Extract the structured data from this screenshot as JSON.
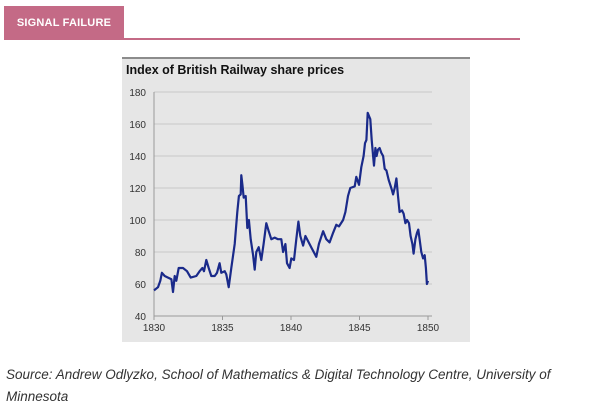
{
  "header": {
    "tab_label": "SIGNAL FAILURE",
    "accent_color": "#c46a86"
  },
  "chart_data": {
    "type": "line",
    "title": "Index of British Railway share prices",
    "xlabel": "",
    "ylabel": "",
    "xlim": [
      1830,
      1850
    ],
    "ylim": [
      40,
      180
    ],
    "xticks": [
      "1830",
      "1835",
      "1840",
      "1845",
      "1850"
    ],
    "yticks": [
      "40",
      "60",
      "80",
      "100",
      "120",
      "140",
      "160",
      "180"
    ],
    "grid": "horizontal",
    "line_color": "#1a2a8a",
    "x": [
      1830.0,
      1830.29,
      1830.46,
      1830.58,
      1830.78,
      1831.02,
      1831.27,
      1831.39,
      1831.51,
      1831.63,
      1831.8,
      1832.12,
      1832.41,
      1832.68,
      1833.09,
      1833.33,
      1833.53,
      1833.65,
      1833.82,
      1833.99,
      1834.18,
      1834.43,
      1834.6,
      1834.79,
      1834.91,
      1835.16,
      1835.28,
      1835.45,
      1835.64,
      1835.89,
      1836.08,
      1836.2,
      1836.33,
      1836.37,
      1836.45,
      1836.55,
      1836.69,
      1836.81,
      1836.93,
      1837.06,
      1837.23,
      1837.35,
      1837.47,
      1837.64,
      1837.83,
      1838.0,
      1838.2,
      1838.37,
      1838.56,
      1838.81,
      1839.05,
      1839.29,
      1839.42,
      1839.59,
      1839.71,
      1839.9,
      1840.02,
      1840.22,
      1840.39,
      1840.54,
      1840.68,
      1840.88,
      1841.05,
      1841.29,
      1841.53,
      1841.85,
      1842.04,
      1842.34,
      1842.58,
      1842.82,
      1843.07,
      1843.31,
      1843.5,
      1843.8,
      1843.97,
      1844.16,
      1844.33,
      1844.65,
      1844.77,
      1844.96,
      1845.13,
      1845.3,
      1845.4,
      1845.5,
      1845.6,
      1845.69,
      1845.79,
      1845.89,
      1845.99,
      1846.06,
      1846.16,
      1846.25,
      1846.35,
      1846.47,
      1846.59,
      1846.72,
      1846.84,
      1846.96,
      1847.13,
      1847.32,
      1847.45,
      1847.57,
      1847.69,
      1847.81,
      1847.93,
      1848.1,
      1848.22,
      1848.35,
      1848.47,
      1848.61,
      1848.73,
      1848.86,
      1848.95,
      1849.08,
      1849.2,
      1849.29,
      1849.39,
      1849.51,
      1849.64,
      1849.76,
      1849.85,
      1849.92,
      1850.0
    ],
    "y": [
      56,
      58,
      62,
      67,
      65,
      64,
      63,
      55,
      65,
      62,
      70,
      70,
      68,
      64,
      65,
      68,
      70,
      68,
      75,
      70,
      65,
      65,
      67,
      73,
      67,
      68,
      66,
      58,
      70,
      85,
      105,
      115,
      116,
      128,
      122,
      114,
      115,
      95,
      100,
      88,
      78,
      69,
      80,
      83,
      75,
      85,
      98,
      93,
      88,
      89,
      88,
      88,
      80,
      85,
      73,
      70,
      76,
      75,
      88,
      99,
      90,
      84,
      90,
      86,
      82,
      77,
      85,
      93,
      88,
      86,
      92,
      97,
      96,
      100,
      105,
      115,
      120,
      121,
      127,
      122,
      133,
      140,
      148,
      150,
      167,
      165,
      163,
      150,
      140,
      134,
      145,
      140,
      144,
      145,
      142,
      140,
      132,
      131,
      125,
      120,
      116,
      120,
      126,
      115,
      105,
      106,
      104,
      98,
      100,
      98,
      90,
      85,
      79,
      88,
      92,
      94,
      88,
      80,
      76,
      78,
      70,
      60,
      62
    ]
  },
  "source": "Source: Andrew Odlyzko, School of Mathematics & Digital Technology Centre, University of Minnesota"
}
